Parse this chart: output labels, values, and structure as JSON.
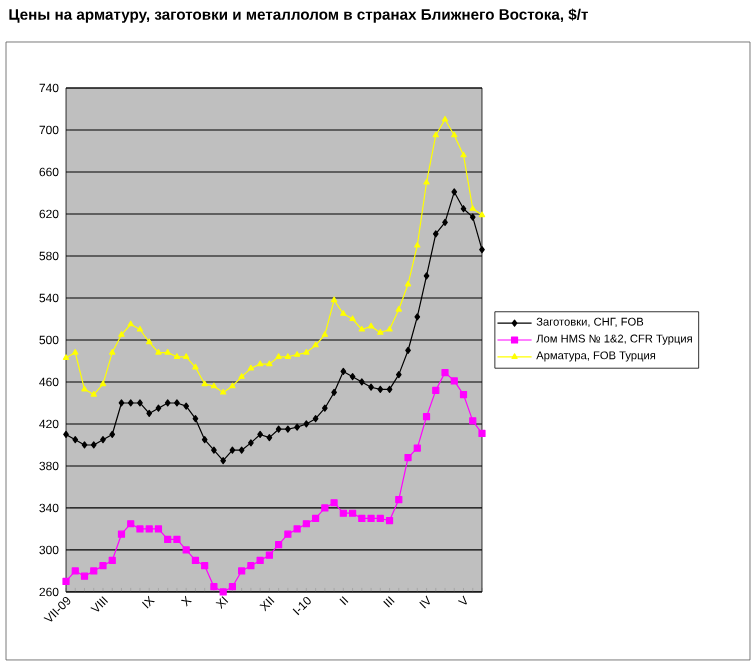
{
  "chart_data": {
    "type": "line",
    "title": "Цены на арматуру, заготовки и металлолом в странах Ближнего Востока, $/т",
    "categories": [
      "VII-09",
      null,
      null,
      null,
      "VIII",
      null,
      null,
      null,
      null,
      "IX",
      null,
      null,
      null,
      "X",
      null,
      null,
      null,
      "XI",
      null,
      null,
      null,
      null,
      "XII",
      null,
      null,
      null,
      "I-10",
      null,
      null,
      null,
      "II",
      null,
      null,
      null,
      null,
      "III",
      null,
      null,
      null,
      "IV",
      null,
      null,
      null,
      "V",
      null,
      null
    ],
    "series": [
      {
        "name": "Заготовки, СНГ, FOB",
        "color": "#000000",
        "marker": "diamond",
        "values": [
          410,
          405,
          400,
          400,
          405,
          410,
          440,
          440,
          440,
          430,
          435,
          440,
          440,
          437,
          425,
          405,
          395,
          385,
          395,
          395,
          402,
          410,
          407,
          415,
          415,
          417,
          420,
          425,
          435,
          450,
          470,
          465,
          460,
          455,
          453,
          453,
          467,
          490,
          522,
          561,
          601,
          612,
          641,
          625,
          617,
          586
        ]
      },
      {
        "name": "Лом HMS № 1&2, CFR Турция",
        "color": "#ff00ff",
        "marker": "square",
        "values": [
          270,
          280,
          275,
          280,
          285,
          290,
          315,
          325,
          320,
          320,
          320,
          310,
          310,
          300,
          290,
          285,
          265,
          260,
          265,
          280,
          285,
          290,
          295,
          305,
          315,
          320,
          325,
          330,
          340,
          345,
          335,
          335,
          330,
          330,
          330,
          328,
          348,
          388,
          397,
          427,
          452,
          469,
          461,
          448,
          423,
          411
        ]
      },
      {
        "name": "Арматура, FOB Турция",
        "color": "#ffff00",
        "marker": "triangle",
        "values": [
          483,
          488,
          453,
          448,
          458,
          488,
          505,
          515,
          510,
          498,
          488,
          488,
          484,
          484,
          474,
          458,
          456,
          450,
          456,
          465,
          473,
          477,
          477,
          484,
          484,
          486,
          488,
          495,
          505,
          538,
          525,
          520,
          510,
          513,
          507,
          510,
          529,
          553,
          590,
          650,
          695,
          710,
          695,
          676,
          625,
          619
        ]
      }
    ],
    "ylim": [
      260,
      740
    ],
    "yticks": [
      260,
      300,
      340,
      380,
      420,
      460,
      500,
      540,
      580,
      620,
      660,
      700,
      740
    ],
    "grid": "y",
    "legend": "right",
    "line_style": "solid"
  }
}
